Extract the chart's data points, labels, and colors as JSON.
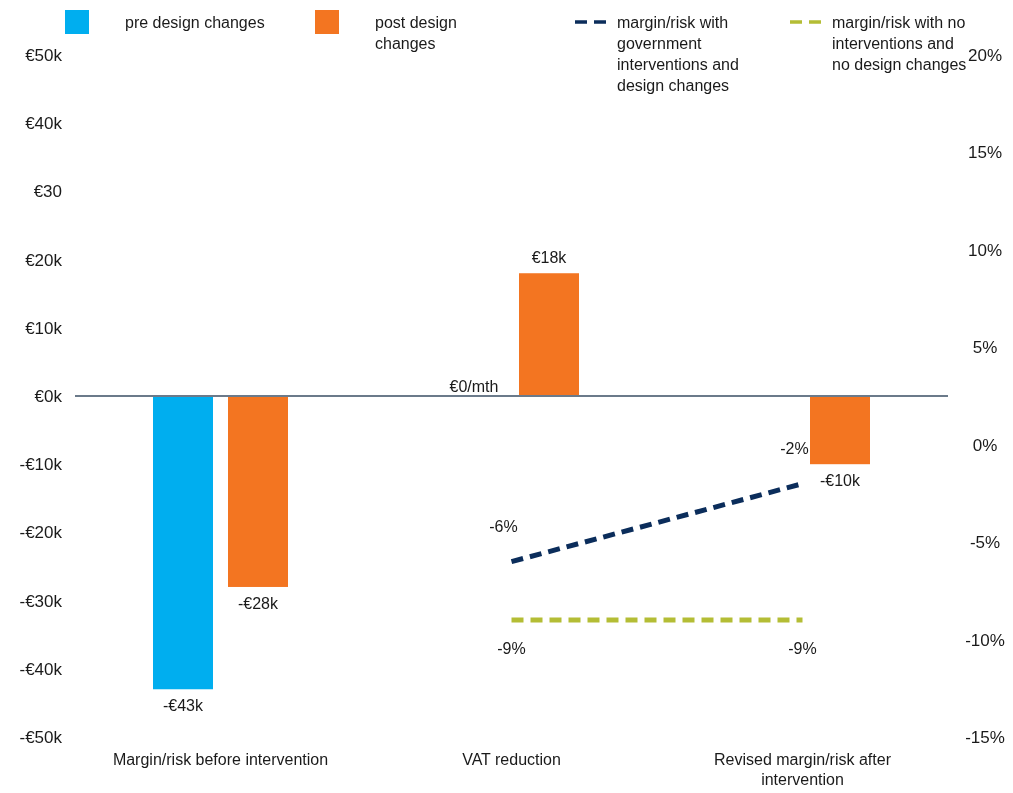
{
  "chart_data": {
    "type": "bar",
    "categories": [
      "Margin/risk before intervention",
      "VAT reduction",
      "Revised margin/risk after intervention"
    ],
    "series": [
      {
        "name": "pre design changes",
        "color": "#00aeef",
        "values": [
          -43,
          0,
          null
        ],
        "value_labels": [
          "-€43k",
          "€0/mth",
          null
        ]
      },
      {
        "name": "post design changes",
        "color": "#f37521",
        "values": [
          -28,
          18,
          -10
        ],
        "value_labels": [
          "-€28k",
          "€18k",
          "-€10k"
        ]
      },
      {
        "name": "margin/risk with government interventions and design changes",
        "type": "line",
        "axis": "y2",
        "line_style": "dashed",
        "color": "#0b2d5b",
        "values": [
          null,
          -6,
          -2
        ],
        "value_labels": [
          null,
          "-6%",
          "-2%"
        ]
      },
      {
        "name": "margin/risk with no interventions and no design changes",
        "type": "line",
        "axis": "y2",
        "line_style": "dashed",
        "color": "#b4bd35",
        "values": [
          null,
          -9,
          -9
        ],
        "value_labels": [
          null,
          "-9%",
          "-9%"
        ]
      }
    ],
    "ylim": [
      -50,
      50
    ],
    "yticks": [
      {
        "value": -50,
        "label": "-€50k"
      },
      {
        "value": -40,
        "label": "-€40k"
      },
      {
        "value": -30,
        "label": "-€30k"
      },
      {
        "value": -20,
        "label": "-€20k"
      },
      {
        "value": -10,
        "label": "-€10k"
      },
      {
        "value": 0,
        "label": "€0k"
      },
      {
        "value": 10,
        "label": "€10k"
      },
      {
        "value": 20,
        "label": "€20k"
      },
      {
        "value": 30,
        "label": "€30"
      },
      {
        "value": 40,
        "label": "€40k"
      },
      {
        "value": 50,
        "label": "€50k"
      }
    ],
    "y2lim": [
      -15,
      20
    ],
    "y2ticks": [
      {
        "value": -15,
        "label": "-15%"
      },
      {
        "value": -10,
        "label": "-10%"
      },
      {
        "value": -5,
        "label": "-5%"
      },
      {
        "value": 0,
        "label": "0%"
      },
      {
        "value": 5,
        "label": "5%"
      },
      {
        "value": 10,
        "label": "10%"
      },
      {
        "value": 15,
        "label": "15%"
      },
      {
        "value": 20,
        "label": "20%"
      }
    ],
    "legend": "top"
  }
}
